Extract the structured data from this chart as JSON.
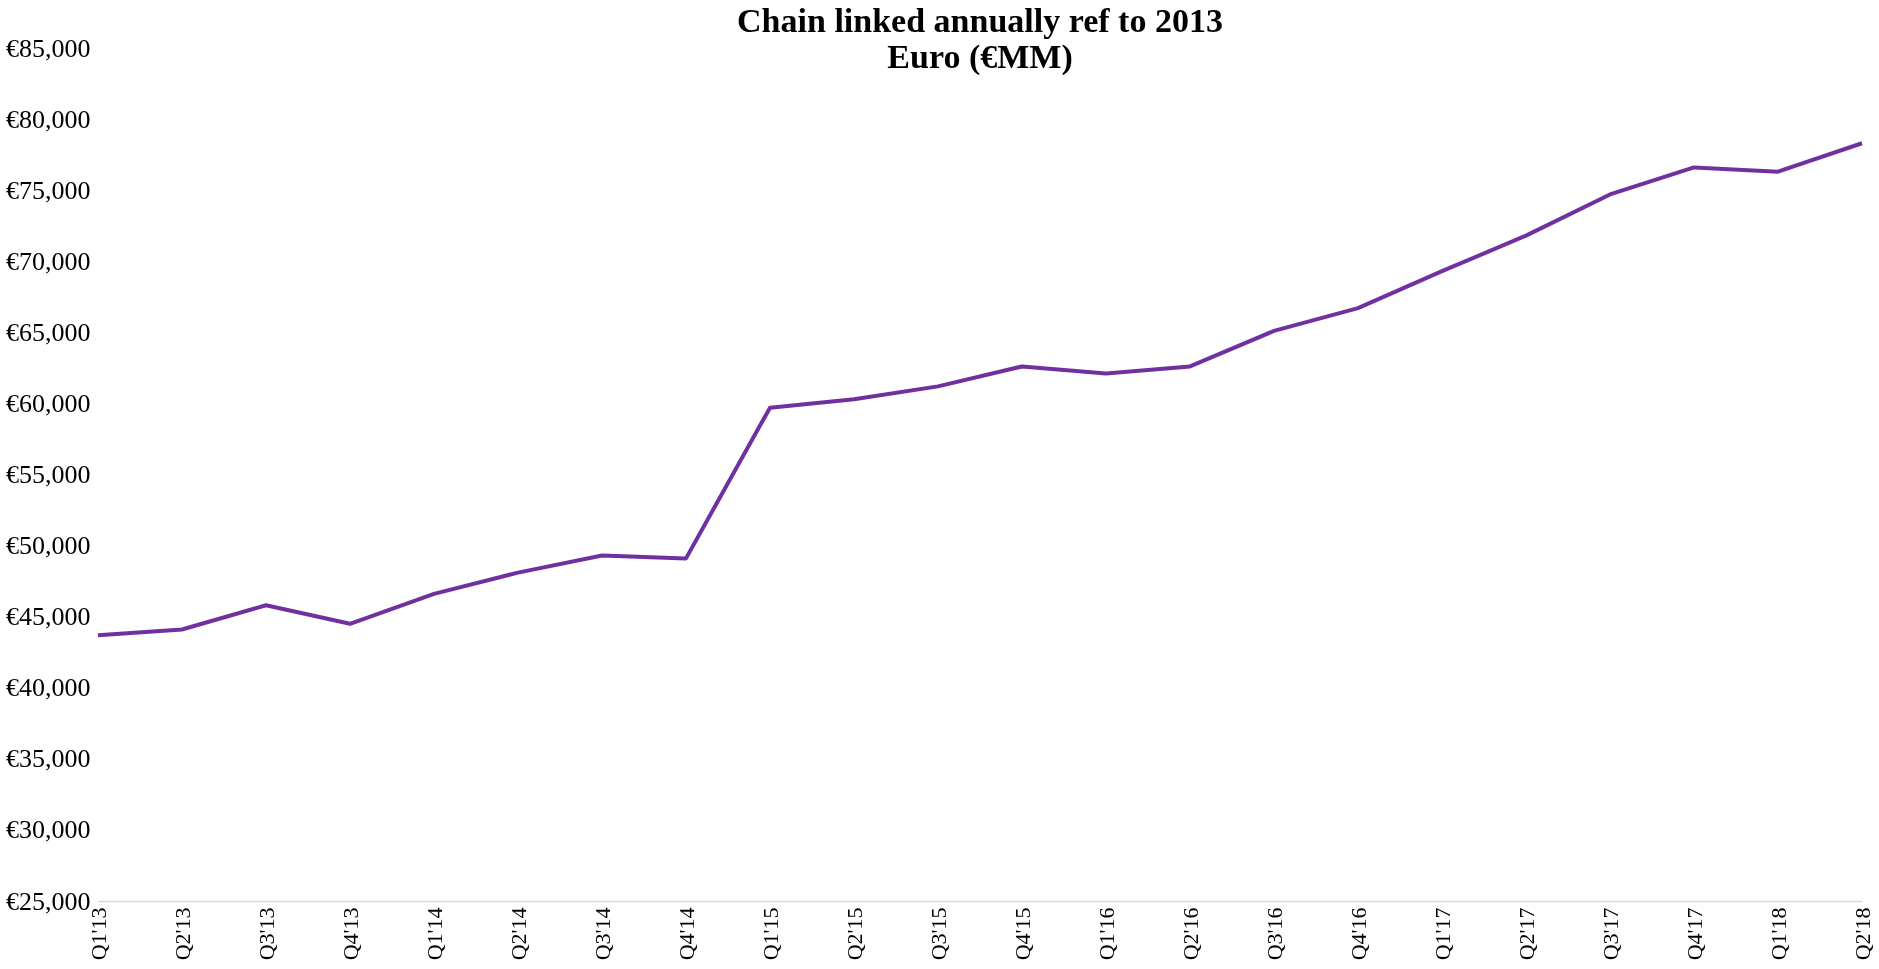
{
  "chart_data": {
    "type": "line",
    "title": [
      "Chain linked annually ref to 2013",
      "Euro (€MM)"
    ],
    "categories": [
      "Q1'13",
      "Q2'13",
      "Q3'13",
      "Q4'13",
      "Q1'14",
      "Q2'14",
      "Q3'14",
      "Q4'14",
      "Q1'15",
      "Q2'15",
      "Q3'15",
      "Q4'15",
      "Q1'16",
      "Q2'16",
      "Q3'16",
      "Q4'16",
      "Q1'17",
      "Q2'17",
      "Q3'17",
      "Q4'17",
      "Q1'18",
      "Q2'18"
    ],
    "series": [
      {
        "color": "#7030a0",
        "values": [
          43700,
          44100,
          45800,
          44500,
          46600,
          48100,
          49300,
          49100,
          59700,
          60300,
          61200,
          62600,
          62100,
          62600,
          65100,
          66700,
          69300,
          71800,
          74700,
          76600,
          76300,
          78300
        ]
      }
    ],
    "ylim": [
      25000,
      85000
    ],
    "yticks": [
      {
        "value": 25000,
        "label": "€25,000"
      },
      {
        "value": 30000,
        "label": "€30,000"
      },
      {
        "value": 35000,
        "label": "€35,000"
      },
      {
        "value": 40000,
        "label": "€40,000"
      },
      {
        "value": 45000,
        "label": "€45,000"
      },
      {
        "value": 50000,
        "label": "€50,000"
      },
      {
        "value": 55000,
        "label": "€55,000"
      },
      {
        "value": 60000,
        "label": "€60,000"
      },
      {
        "value": 65000,
        "label": "€65,000"
      },
      {
        "value": 70000,
        "label": "€70,000"
      },
      {
        "value": 75000,
        "label": "€75,000"
      },
      {
        "value": 80000,
        "label": "€80,000"
      },
      {
        "value": 85000,
        "label": "€85,000"
      }
    ],
    "grid": false,
    "legend": false,
    "marker": "none",
    "line_style": "solid"
  }
}
